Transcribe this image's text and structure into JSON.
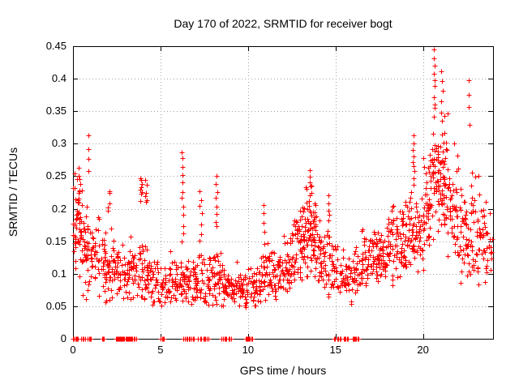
{
  "chart_data": {
    "type": "scatter",
    "title": "Day 170 of 2022, SRMTID for receiver bogt",
    "xlabel": "GPS time / hours",
    "ylabel": "SRMTID / TECUs",
    "xlim": [
      0,
      24
    ],
    "ylim": [
      0,
      0.45
    ],
    "xticks": [
      0,
      5,
      10,
      15,
      20
    ],
    "xtick_labels": [
      "0",
      "5",
      "10",
      "15",
      "20"
    ],
    "yticks": [
      0,
      0.05,
      0.1,
      0.15,
      0.2,
      0.25,
      0.3,
      0.35,
      0.4,
      0.45
    ],
    "ytick_labels": [
      "0",
      "0.05",
      "0.1",
      "0.15",
      "0.2",
      "0.25",
      "0.3",
      "0.35",
      "0.4",
      "0.45"
    ],
    "grid": "dotted-major",
    "grid_color": "#a0a0a0",
    "axis_color": "#000000",
    "background": "#ffffff",
    "legend": "none",
    "marker": "plus",
    "marker_color": "#ff0000",
    "marker_size_px": 7,
    "seed": 42,
    "bins_format": "[hour_start, hour_end, n_points, y_center, y_spread, y_min, y_max] (bulk cloud read from plot)",
    "bins": [
      [
        0.0,
        0.5,
        55,
        0.18,
        0.07,
        0.08,
        0.27
      ],
      [
        0.5,
        1.0,
        40,
        0.13,
        0.06,
        0.05,
        0.26
      ],
      [
        1.0,
        1.5,
        35,
        0.13,
        0.05,
        0.06,
        0.2
      ],
      [
        1.5,
        2.0,
        32,
        0.11,
        0.05,
        0.05,
        0.19
      ],
      [
        2.0,
        2.5,
        32,
        0.11,
        0.05,
        0.06,
        0.21
      ],
      [
        2.5,
        3.0,
        30,
        0.1,
        0.04,
        0.05,
        0.16
      ],
      [
        3.0,
        3.5,
        30,
        0.1,
        0.045,
        0.05,
        0.17
      ],
      [
        3.5,
        4.0,
        28,
        0.1,
        0.045,
        0.06,
        0.16
      ],
      [
        4.0,
        4.5,
        30,
        0.1,
        0.04,
        0.06,
        0.16
      ],
      [
        4.5,
        5.0,
        26,
        0.09,
        0.035,
        0.05,
        0.13
      ],
      [
        5.0,
        5.5,
        26,
        0.08,
        0.035,
        0.04,
        0.12
      ],
      [
        5.5,
        6.0,
        30,
        0.09,
        0.04,
        0.05,
        0.14
      ],
      [
        6.0,
        6.5,
        32,
        0.09,
        0.04,
        0.05,
        0.14
      ],
      [
        6.5,
        7.0,
        30,
        0.09,
        0.04,
        0.05,
        0.14
      ],
      [
        7.0,
        7.5,
        30,
        0.09,
        0.04,
        0.05,
        0.15
      ],
      [
        7.5,
        8.0,
        30,
        0.09,
        0.04,
        0.05,
        0.14
      ],
      [
        8.0,
        8.5,
        32,
        0.09,
        0.04,
        0.05,
        0.14
      ],
      [
        8.5,
        9.0,
        30,
        0.08,
        0.035,
        0.05,
        0.13
      ],
      [
        9.0,
        9.5,
        30,
        0.08,
        0.035,
        0.04,
        0.12
      ],
      [
        9.5,
        10.0,
        32,
        0.08,
        0.04,
        0.04,
        0.13
      ],
      [
        10.0,
        10.5,
        30,
        0.08,
        0.035,
        0.05,
        0.12
      ],
      [
        10.5,
        11.0,
        30,
        0.09,
        0.04,
        0.05,
        0.15
      ],
      [
        11.0,
        11.5,
        30,
        0.1,
        0.04,
        0.06,
        0.15
      ],
      [
        11.5,
        12.0,
        33,
        0.1,
        0.045,
        0.06,
        0.17
      ],
      [
        12.0,
        12.5,
        35,
        0.11,
        0.05,
        0.07,
        0.19
      ],
      [
        12.5,
        13.0,
        40,
        0.14,
        0.06,
        0.08,
        0.24
      ],
      [
        13.0,
        13.5,
        45,
        0.16,
        0.06,
        0.09,
        0.25
      ],
      [
        13.5,
        14.0,
        45,
        0.15,
        0.06,
        0.09,
        0.25
      ],
      [
        14.0,
        14.5,
        35,
        0.13,
        0.055,
        0.07,
        0.22
      ],
      [
        14.5,
        15.0,
        28,
        0.11,
        0.045,
        0.06,
        0.18
      ],
      [
        15.0,
        15.5,
        26,
        0.1,
        0.04,
        0.05,
        0.15
      ],
      [
        15.5,
        16.0,
        28,
        0.09,
        0.04,
        0.05,
        0.14
      ],
      [
        16.0,
        16.5,
        28,
        0.1,
        0.04,
        0.06,
        0.15
      ],
      [
        16.5,
        17.0,
        32,
        0.12,
        0.04,
        0.05,
        0.18
      ],
      [
        17.0,
        17.5,
        36,
        0.13,
        0.04,
        0.07,
        0.19
      ],
      [
        17.5,
        18.0,
        36,
        0.13,
        0.045,
        0.07,
        0.2
      ],
      [
        18.0,
        18.5,
        38,
        0.14,
        0.05,
        0.08,
        0.22
      ],
      [
        18.5,
        19.0,
        38,
        0.15,
        0.055,
        0.09,
        0.25
      ],
      [
        19.0,
        19.5,
        38,
        0.16,
        0.06,
        0.1,
        0.28
      ],
      [
        19.5,
        20.0,
        38,
        0.16,
        0.06,
        0.1,
        0.28
      ],
      [
        20.0,
        20.5,
        42,
        0.2,
        0.08,
        0.11,
        0.34
      ],
      [
        20.5,
        21.0,
        48,
        0.26,
        0.09,
        0.13,
        0.42
      ],
      [
        21.0,
        21.5,
        48,
        0.24,
        0.09,
        0.12,
        0.4
      ],
      [
        21.5,
        22.0,
        40,
        0.2,
        0.08,
        0.1,
        0.33
      ],
      [
        22.0,
        22.5,
        35,
        0.17,
        0.07,
        0.08,
        0.3
      ],
      [
        22.5,
        23.0,
        34,
        0.17,
        0.08,
        0.07,
        0.4
      ],
      [
        23.0,
        23.5,
        30,
        0.15,
        0.07,
        0.08,
        0.32
      ],
      [
        23.5,
        24.0,
        24,
        0.13,
        0.06,
        0.08,
        0.25
      ]
    ],
    "columns_format": "[hour, n_points, y_low, y_high] (vertical spike arcs read from plot)",
    "columns": [
      [
        0.35,
        5,
        0.22,
        0.265
      ],
      [
        0.92,
        4,
        0.26,
        0.312
      ],
      [
        2.05,
        5,
        0.195,
        0.23
      ],
      [
        3.9,
        8,
        0.215,
        0.245
      ],
      [
        4.15,
        6,
        0.21,
        0.24
      ],
      [
        6.25,
        12,
        0.15,
        0.29
      ],
      [
        7.3,
        7,
        0.15,
        0.23
      ],
      [
        8.2,
        8,
        0.17,
        0.25
      ],
      [
        10.9,
        5,
        0.15,
        0.205
      ],
      [
        13.55,
        8,
        0.2,
        0.26
      ],
      [
        14.6,
        7,
        0.16,
        0.22
      ],
      [
        19.45,
        9,
        0.24,
        0.31
      ],
      [
        20.65,
        10,
        0.34,
        0.444
      ],
      [
        21.1,
        8,
        0.3,
        0.41
      ],
      [
        22.6,
        4,
        0.33,
        0.4
      ]
    ],
    "zero_clusters_format": "[hour_start, hour_end, n_points] (markers at exactly y=0 on baseline)",
    "zero_clusters": [
      [
        0.0,
        0.3,
        7
      ],
      [
        0.45,
        0.7,
        5
      ],
      [
        0.85,
        1.05,
        4
      ],
      [
        1.65,
        1.8,
        4
      ],
      [
        2.45,
        2.95,
        14
      ],
      [
        3.0,
        3.6,
        14
      ],
      [
        4.95,
        5.25,
        4
      ],
      [
        6.3,
        6.95,
        9
      ],
      [
        7.15,
        7.8,
        8
      ],
      [
        8.45,
        9.05,
        8
      ],
      [
        9.85,
        10.3,
        9
      ],
      [
        14.87,
        15.35,
        6
      ],
      [
        15.4,
        15.75,
        5
      ],
      [
        15.95,
        16.35,
        7
      ]
    ]
  }
}
